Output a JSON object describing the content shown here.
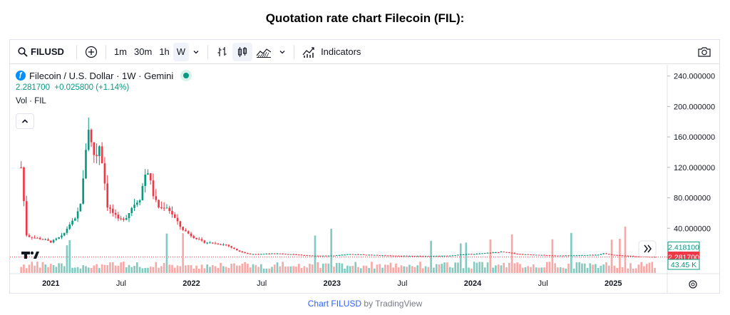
{
  "page": {
    "title": "Quotation rate chart Filecoin (FIL):",
    "footer_link": "Chart FILUSD",
    "footer_suffix": " by TradingView"
  },
  "toolbar": {
    "symbol": "FILUSD",
    "intervals": [
      "1m",
      "30m",
      "1h",
      "W"
    ],
    "active_interval": "W",
    "indicators_label": "Indicators",
    "icons": [
      "search-icon",
      "add-compare-icon",
      "chevron-down-icon",
      "bar-style-icon",
      "candle-style-icon",
      "area-style-icon",
      "indicators-icon",
      "camera-icon"
    ]
  },
  "legend": {
    "title": "Filecoin / U.S. Dollar · 1W · Gemini",
    "price_change": "2.281700  +0.025800 (+1.14%)",
    "volume_label": "Vol · FIL"
  },
  "colors": {
    "up": "#089981",
    "down": "#f23645",
    "up_volume": "#82cbc0",
    "down_volume": "#f7a9a7",
    "axis_text": "#131722",
    "grid_axis": "#e0e3eb"
  },
  "chart_data": {
    "type": "candlestick",
    "y_ticks": [
      "240.000000",
      "200.000000",
      "160.000000",
      "120.000000",
      "80.000000",
      "40.000000"
    ],
    "y_tick_values": [
      240,
      200,
      160,
      120,
      80,
      40
    ],
    "x_ticks": [
      "2021",
      "Jul",
      "2022",
      "Jul",
      "2023",
      "Jul",
      "2024",
      "Jul",
      "2025"
    ],
    "x_tick_dates": [
      "2021-01",
      "2021-07",
      "2022-01",
      "2022-07",
      "2023-01",
      "2023-07",
      "2024-01",
      "2024-07",
      "2025-01"
    ],
    "price_labels": [
      {
        "text": "2.418100",
        "style": "outline"
      },
      {
        "text": "2.281700",
        "style": "filled"
      },
      {
        "text": "43.45 K",
        "style": "outline"
      }
    ],
    "ylim": [
      0,
      250
    ],
    "x_range": [
      "2020-10",
      "2025-05"
    ],
    "close_path": [
      [
        "2020-10-15",
        120
      ],
      [
        "2020-10-29",
        30
      ],
      [
        "2020-11-15",
        28
      ],
      [
        "2020-12-15",
        25
      ],
      [
        "2021-01-01",
        22
      ],
      [
        "2021-02-01",
        30
      ],
      [
        "2021-02-20",
        46
      ],
      [
        "2021-03-05",
        52
      ],
      [
        "2021-03-20",
        80
      ],
      [
        "2021-03-30",
        140
      ],
      [
        "2021-04-05",
        180
      ],
      [
        "2021-04-15",
        150
      ],
      [
        "2021-04-25",
        130
      ],
      [
        "2021-05-05",
        150
      ],
      [
        "2021-05-15",
        120
      ],
      [
        "2021-05-25",
        70
      ],
      [
        "2021-06-10",
        60
      ],
      [
        "2021-06-25",
        50
      ],
      [
        "2021-07-15",
        55
      ],
      [
        "2021-08-01",
        70
      ],
      [
        "2021-08-20",
        80
      ],
      [
        "2021-09-01",
        110
      ],
      [
        "2021-09-10",
        115
      ],
      [
        "2021-09-25",
        80
      ],
      [
        "2021-10-10",
        65
      ],
      [
        "2021-10-25",
        70
      ],
      [
        "2021-11-10",
        60
      ],
      [
        "2021-12-05",
        40
      ],
      [
        "2022-01-01",
        30
      ],
      [
        "2022-02-01",
        22
      ],
      [
        "2022-03-01",
        20
      ],
      [
        "2022-04-01",
        18
      ],
      [
        "2022-05-01",
        10
      ],
      [
        "2022-06-01",
        6
      ],
      [
        "2022-07-01",
        6
      ],
      [
        "2022-08-01",
        7
      ],
      [
        "2022-11-15",
        4
      ],
      [
        "2023-01-01",
        4
      ],
      [
        "2023-02-15",
        6
      ],
      [
        "2023-06-01",
        4
      ],
      [
        "2023-09-01",
        3.5
      ],
      [
        "2023-11-01",
        4
      ],
      [
        "2023-12-15",
        6
      ],
      [
        "2024-01-01",
        6
      ],
      [
        "2024-03-15",
        9
      ],
      [
        "2024-05-01",
        6
      ],
      [
        "2024-08-05",
        4
      ],
      [
        "2024-11-20",
        5
      ],
      [
        "2024-12-05",
        7
      ],
      [
        "2025-01-01",
        5
      ],
      [
        "2025-03-01",
        3
      ],
      [
        "2025-04-20",
        2.2
      ]
    ]
  }
}
